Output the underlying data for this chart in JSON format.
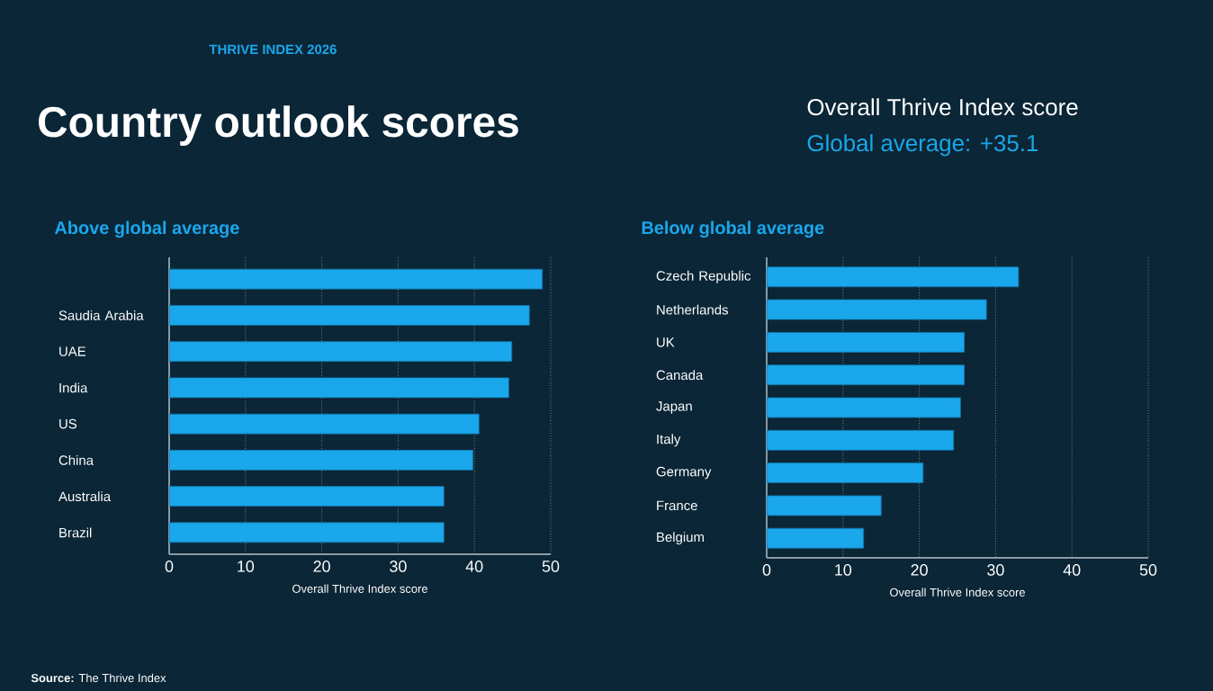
{
  "chart_data": [
    {
      "type": "bar",
      "orientation": "horizontal",
      "title": "Country outlook scores",
      "subtitle": "Above global average",
      "xlabel": "Overall Thrive Index score",
      "annotations": [
        "THRIVE INDEX 2026",
        "Overall Thrive Index score",
        "Global average: +35.1",
        "**Source:** The Thrive Index"
      ],
      "categories": [
        null,
        "Saudia Arabia",
        "UAE",
        "India",
        "US",
        "China",
        "Australia",
        "Brazil"
      ],
      "values": [
        48.9,
        47.2,
        44.9,
        44.5,
        40.6,
        39.8,
        36.0,
        36.0
      ],
      "color": "#1aa7ec",
      "xlim": [
        0,
        50
      ],
      "xticks": [
        0,
        10,
        20,
        30,
        40,
        50
      ],
      "grid": "x"
    },
    {
      "type": "bar",
      "orientation": "horizontal",
      "subtitle": "Below global average",
      "xlabel": "Overall Thrive Index score",
      "categories": [
        "Czech Republic",
        "Netherlands",
        "UK",
        "Canada",
        "Japan",
        "Italy",
        "Germany",
        "France",
        "Belgium"
      ],
      "values": [
        33.0,
        28.8,
        25.9,
        25.9,
        25.4,
        24.5,
        20.5,
        15.0,
        12.7
      ],
      "color": "#1aa7ec",
      "xlim": [
        0,
        50
      ],
      "xticks": [
        0,
        10,
        20,
        30,
        40,
        50
      ],
      "grid": "x"
    }
  ]
}
